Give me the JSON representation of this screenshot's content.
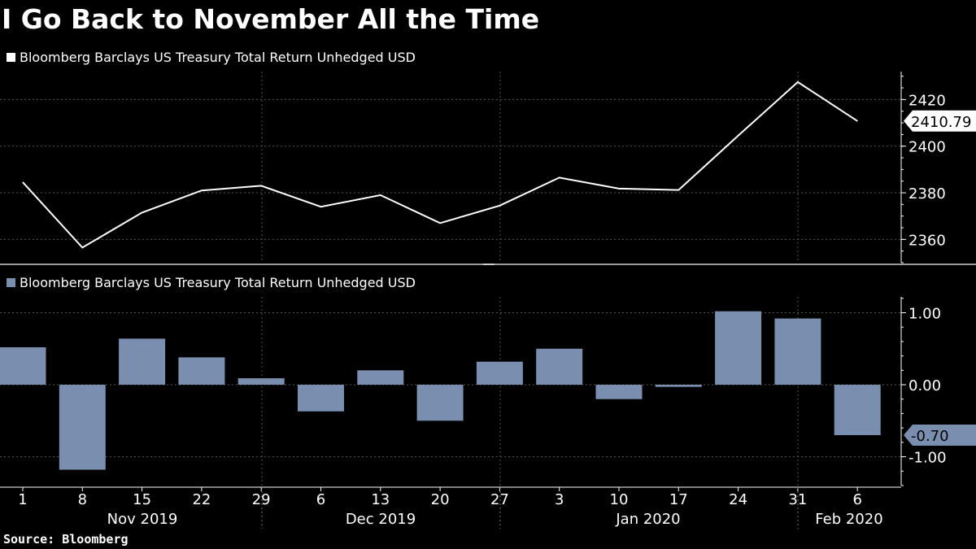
{
  "title": "I Go Back to November All the Time",
  "source": "Source: Bloomberg",
  "chart_data": [
    {
      "type": "line",
      "legend": "Bloomberg Barclays US Treasury Total Return Unhedged USD",
      "legend_color": "#ffffff",
      "x": [
        "1",
        "8",
        "15",
        "22",
        "29",
        "6",
        "13",
        "20",
        "27",
        "3",
        "10",
        "17",
        "24",
        "31",
        "6"
      ],
      "values": [
        2384.5,
        2356.5,
        2371.5,
        2381,
        2383,
        2374,
        2379,
        2367,
        2374.5,
        2386.5,
        2381.8,
        2381.2,
        2404.5,
        2427.5,
        2410.79
      ],
      "ylim": [
        2350,
        2432
      ],
      "yticks": [
        2360,
        2380,
        2400,
        2420
      ],
      "last_value_label": "2410.79",
      "line_color": "#ffffff"
    },
    {
      "type": "bar",
      "legend": "Bloomberg Barclays US Treasury Total Return Unhedged USD",
      "legend_color": "#7a8fb0",
      "x": [
        "1",
        "8",
        "15",
        "22",
        "29",
        "6",
        "13",
        "20",
        "27",
        "3",
        "10",
        "17",
        "24",
        "31",
        "6"
      ],
      "values": [
        0.52,
        -1.18,
        0.64,
        0.38,
        0.09,
        -0.37,
        0.2,
        -0.5,
        0.32,
        0.5,
        -0.2,
        -0.03,
        1.02,
        0.92,
        -0.7
      ],
      "ylim": [
        -1.4,
        1.22
      ],
      "yticks": [
        -1.0,
        0.0,
        1.0
      ],
      "ytick_labels": [
        "-1.00",
        "0.00",
        "1.00"
      ],
      "last_value_label": "-0.70",
      "bar_color": "#7a8fb0"
    }
  ],
  "x_axis": {
    "tick_labels": [
      "1",
      "8",
      "15",
      "22",
      "29",
      "6",
      "13",
      "20",
      "27",
      "3",
      "10",
      "17",
      "24",
      "31",
      "6"
    ],
    "month_labels": [
      "Nov 2019",
      "Dec 2019",
      "Jan 2020",
      "Feb 2020"
    ]
  }
}
